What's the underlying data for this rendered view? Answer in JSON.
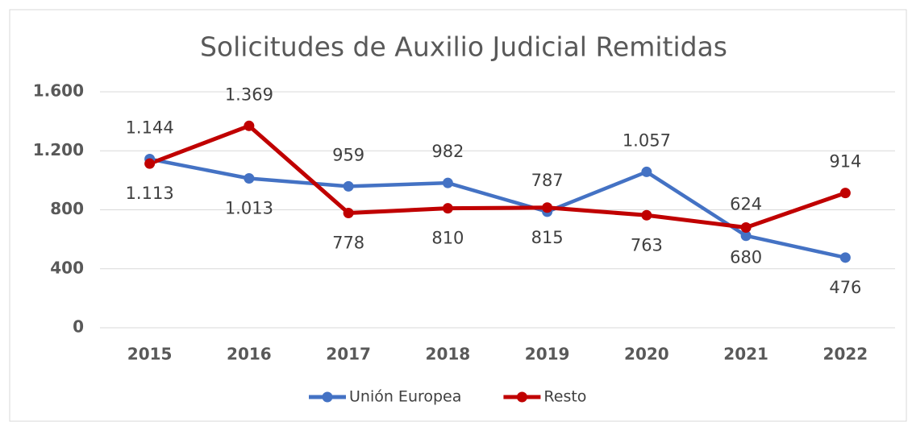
{
  "chart_data": {
    "type": "line",
    "title": "Solicitudes de Auxilio Judicial Remitidas",
    "categories": [
      "2015",
      "2016",
      "2017",
      "2018",
      "2019",
      "2020",
      "2021",
      "2022"
    ],
    "series": [
      {
        "name": "Unión Europea",
        "color": "#4472c4",
        "values": [
          1144,
          1013,
          959,
          982,
          787,
          1057,
          624,
          476
        ],
        "value_labels": [
          "1.144",
          "1.013",
          "959",
          "982",
          "787",
          "1.057",
          "624",
          "476"
        ]
      },
      {
        "name": "Resto",
        "color": "#c00000",
        "values": [
          1113,
          1369,
          778,
          810,
          815,
          763,
          680,
          914
        ],
        "value_labels": [
          "1.113",
          "1.369",
          "778",
          "810",
          "815",
          "763",
          "680",
          "914"
        ]
      }
    ],
    "ylim": [
      0,
      1600
    ],
    "yticks": [
      0,
      400,
      800,
      {
        "value": 1200,
        "label": "1.200"
      },
      {
        "value": 1600,
        "label": "1.600"
      }
    ],
    "grid": true,
    "legend": "bottom"
  }
}
